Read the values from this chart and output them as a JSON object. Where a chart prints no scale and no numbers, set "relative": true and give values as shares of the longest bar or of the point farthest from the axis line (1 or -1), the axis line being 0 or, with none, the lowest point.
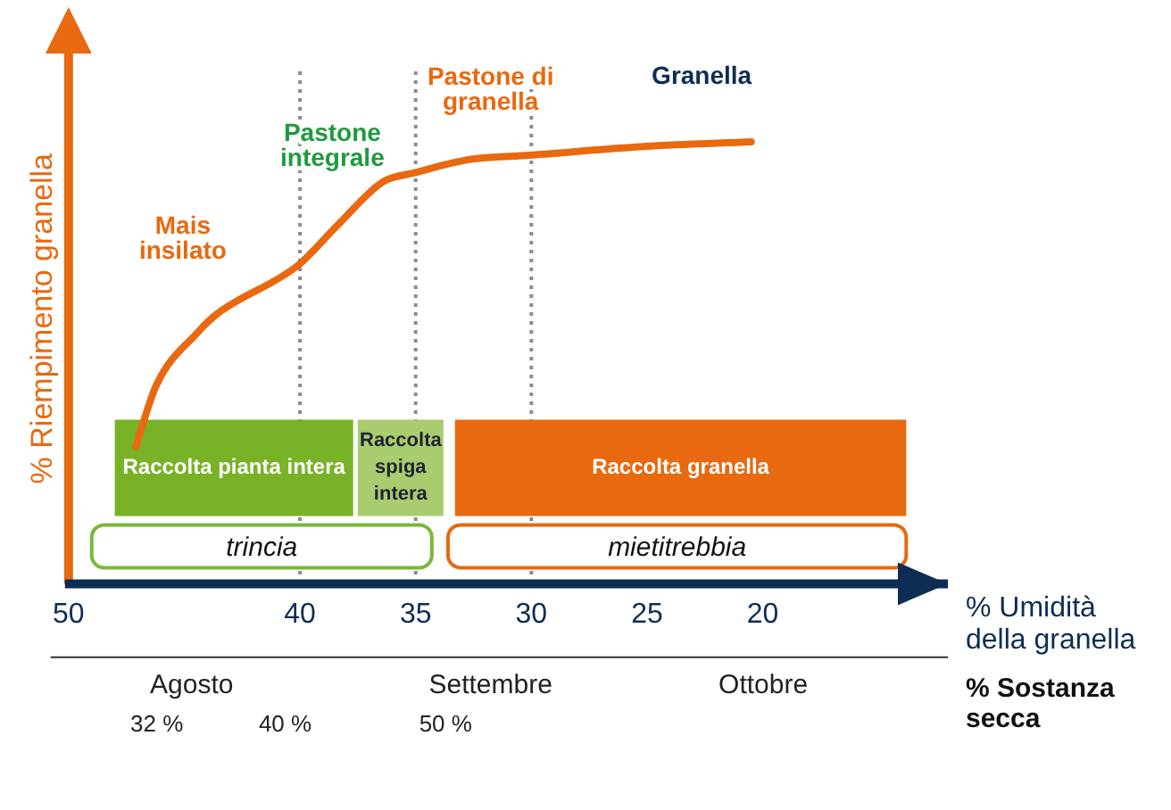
{
  "chart_data": {
    "type": "line",
    "relative": true,
    "xlabel": "% Umidità della granella",
    "ylabel": "% Riempimento granella",
    "x": [
      47.1,
      46.2,
      44.4,
      43.6,
      40.1,
      38.4,
      36.4,
      35.05,
      32.7,
      30.05,
      25,
      20.5
    ],
    "series": [
      {
        "color": "#e8690f",
        "values": [
          0.31,
          0.45,
          0.57,
          0.61,
          0.72,
          0.81,
          0.91,
          0.93,
          0.96,
          0.97,
          0.99,
          1
        ]
      }
    ],
    "xlim": [
      50,
      12
    ],
    "xticks": [
      50,
      40,
      35,
      30,
      25,
      20
    ],
    "x2label": "% Sostanza secca",
    "x2lim": [
      26.5,
      81.3
    ],
    "x2ticks": [
      {
        "value": 32,
        "label": "32 %"
      },
      {
        "value": 40,
        "label": "40 %"
      },
      {
        "value": 50,
        "label": "50 %"
      }
    ],
    "ref_lines": [
      {
        "axis": "x",
        "value": 40,
        "color": "#8a8aa0",
        "line_style": "dotted"
      },
      {
        "axis": "x",
        "value": 35,
        "color": "#8a8aa0",
        "line_style": "dotted"
      },
      {
        "axis": "x",
        "value": 30,
        "color": "#8a8aa0",
        "line_style": "dotted"
      }
    ],
    "bands": [
      {
        "axis": "x",
        "from": 48,
        "to": 37.7,
        "label": "Raccolta pianta intera",
        "color": "#78b227"
      },
      {
        "axis": "x",
        "from": 37.5,
        "to": 33.8,
        "label": "Raccolta spiga intera",
        "color": "#a8cc6e"
      },
      {
        "axis": "x",
        "from": 33.3,
        "to": 13.8,
        "label": "Raccolta granella",
        "color": "#e8690f"
      },
      {
        "axis": "x",
        "from": 49,
        "to": 34.3,
        "label": "trincia",
        "color": "#7ab83a"
      },
      {
        "axis": "x",
        "from": 33.6,
        "to": 13.8,
        "label": "mietitrebbia",
        "color": "#e8690f"
      }
    ],
    "annotations": [
      "Mais insilato",
      "Pastone integrale",
      "Pastone di granella",
      "Granella",
      "Agosto",
      "Settembre",
      "Ottobre"
    ],
    "legend": false,
    "grid": false,
    "marker": "none"
  }
}
